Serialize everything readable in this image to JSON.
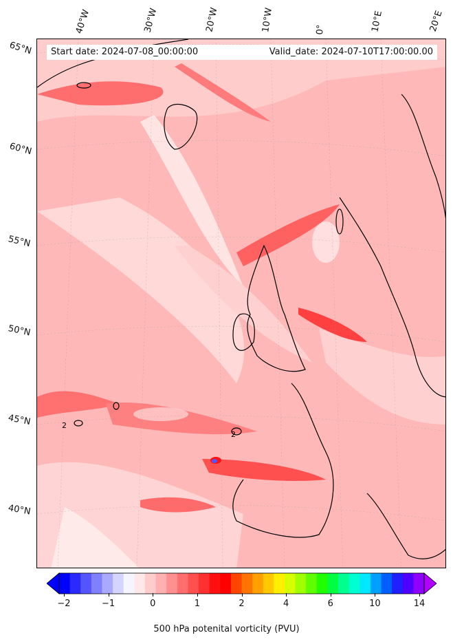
{
  "header": {
    "start_date": "Start date: 2024-07-08_00:00:00",
    "valid_date": "Valid_date: 2024-07-10T17:00:00.00"
  },
  "map": {
    "longitude_labels": [
      "40°W",
      "30°W",
      "20°W",
      "10°W",
      "0°",
      "10°E",
      "20°E"
    ],
    "latitude_labels": [
      "65°N",
      "60°N",
      "55°N",
      "50°N",
      "45°N",
      "40°N"
    ],
    "contour_labels": [
      "2",
      "2"
    ],
    "colors": {
      "ocean_base": "#ffbbbb",
      "land_outline": "#000000"
    }
  },
  "colorbar": {
    "ticks": [
      "−2",
      "−1",
      "0",
      "1",
      "2",
      "4",
      "6",
      "10",
      "14"
    ],
    "label": "500 hPa potenital vorticity (PVU)",
    "colors": [
      "#0000ff",
      "#2a2aff",
      "#5555ff",
      "#8080ff",
      "#a9a9ff",
      "#d4d4ff",
      "#f5f5ff",
      "#ffe8e8",
      "#ffcccc",
      "#ffb0b0",
      "#ff9090",
      "#ff6e6e",
      "#ff5050",
      "#ff3030",
      "#ff0f0f",
      "#ff0000",
      "#ff4500",
      "#ff7300",
      "#ffa000",
      "#ffc800",
      "#fff000",
      "#d6ff00",
      "#a0ff00",
      "#60ff00",
      "#20ff00",
      "#00ff40",
      "#00ff90",
      "#00ffd0",
      "#00e8ff",
      "#00a0ff",
      "#0060ff",
      "#2020ff",
      "#5000ff",
      "#9000ff"
    ]
  }
}
